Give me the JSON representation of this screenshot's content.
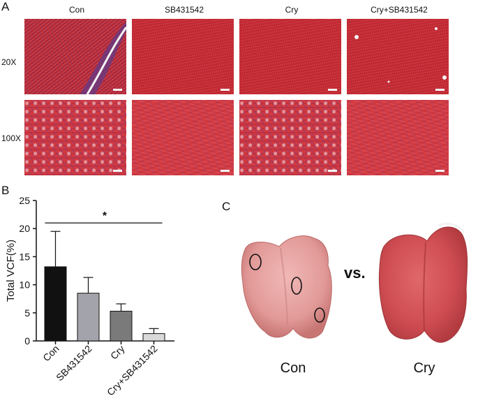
{
  "panels": {
    "a": {
      "letter": "A",
      "columns": [
        "Con",
        "SB431542",
        "Cry",
        "Cry+SB431542"
      ],
      "rows": [
        "20X",
        "100X"
      ]
    },
    "b": {
      "letter": "B"
    },
    "c": {
      "letter": "C",
      "vs_label": "vs.",
      "left_label": "Con",
      "right_label": "Cry"
    }
  },
  "chart_data": {
    "type": "bar",
    "categories": [
      "Con",
      "SB431542",
      "Cry",
      "Cry+SB431542"
    ],
    "values": [
      13.2,
      8.5,
      5.3,
      1.3
    ],
    "errors": [
      6.3,
      2.8,
      1.3,
      0.9
    ],
    "colors": [
      "#111111",
      "#a3a3ab",
      "#7a7a7a",
      "#d9d9d9"
    ],
    "ylabel": "Total VCF(%)",
    "xlabel": "",
    "ylim": [
      0,
      25
    ],
    "yticks": [
      "0",
      "5",
      "10",
      "15",
      "20",
      "25"
    ],
    "significance": {
      "label": "*",
      "from": "Con",
      "to": "Cry+SB431542"
    },
    "grid": false
  }
}
